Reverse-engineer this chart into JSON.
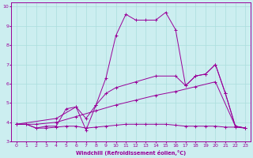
{
  "xlabel": "Windchill (Refroidissement éolien,°C)",
  "bg_color": "#cceef0",
  "grid_color": "#aadddd",
  "line_color": "#990099",
  "xlim": [
    -0.5,
    23.5
  ],
  "ylim": [
    3,
    10.2
  ],
  "yticks": [
    3,
    4,
    5,
    6,
    7,
    8,
    9,
    10
  ],
  "xticks": [
    0,
    1,
    2,
    3,
    4,
    5,
    6,
    7,
    8,
    9,
    10,
    11,
    12,
    13,
    14,
    15,
    16,
    17,
    18,
    19,
    20,
    21,
    22,
    23
  ],
  "line1": [
    [
      0,
      3.9
    ],
    [
      1,
      3.9
    ],
    [
      2,
      3.7
    ],
    [
      3,
      3.8
    ],
    [
      4,
      3.8
    ],
    [
      5,
      4.7
    ],
    [
      6,
      4.8
    ],
    [
      7,
      3.6
    ],
    [
      8,
      4.9
    ],
    [
      9,
      6.3
    ],
    [
      10,
      8.5
    ],
    [
      11,
      9.6
    ],
    [
      12,
      9.3
    ],
    [
      13,
      9.3
    ],
    [
      14,
      9.3
    ],
    [
      15,
      9.7
    ],
    [
      16,
      8.8
    ],
    [
      17,
      5.9
    ],
    [
      18,
      6.4
    ],
    [
      19,
      6.5
    ],
    [
      20,
      7.0
    ],
    [
      21,
      5.5
    ],
    [
      22,
      3.8
    ],
    [
      23,
      3.7
    ]
  ],
  "line2": [
    [
      0,
      3.9
    ],
    [
      1,
      3.9
    ],
    [
      2,
      3.7
    ],
    [
      3,
      3.7
    ],
    [
      4,
      3.75
    ],
    [
      5,
      3.8
    ],
    [
      6,
      3.8
    ],
    [
      7,
      3.7
    ],
    [
      8,
      3.75
    ],
    [
      9,
      3.8
    ],
    [
      10,
      3.85
    ],
    [
      11,
      3.9
    ],
    [
      12,
      3.9
    ],
    [
      13,
      3.9
    ],
    [
      14,
      3.9
    ],
    [
      15,
      3.9
    ],
    [
      16,
      3.85
    ],
    [
      17,
      3.8
    ],
    [
      18,
      3.8
    ],
    [
      19,
      3.8
    ],
    [
      20,
      3.8
    ],
    [
      21,
      3.75
    ],
    [
      22,
      3.75
    ],
    [
      23,
      3.7
    ]
  ],
  "line3": [
    [
      0,
      3.9
    ],
    [
      2,
      3.9
    ],
    [
      4,
      4.0
    ],
    [
      6,
      4.3
    ],
    [
      8,
      4.6
    ],
    [
      10,
      4.9
    ],
    [
      12,
      5.15
    ],
    [
      14,
      5.4
    ],
    [
      16,
      5.6
    ],
    [
      18,
      5.85
    ],
    [
      20,
      6.1
    ],
    [
      22,
      3.8
    ],
    [
      23,
      3.7
    ]
  ],
  "line4": [
    [
      0,
      3.9
    ],
    [
      4,
      4.2
    ],
    [
      6,
      4.8
    ],
    [
      7,
      4.2
    ],
    [
      8,
      4.9
    ],
    [
      9,
      5.5
    ],
    [
      10,
      5.8
    ],
    [
      12,
      6.1
    ],
    [
      14,
      6.4
    ],
    [
      16,
      6.4
    ],
    [
      17,
      5.9
    ],
    [
      18,
      6.4
    ],
    [
      19,
      6.5
    ],
    [
      20,
      7.0
    ],
    [
      21,
      5.5
    ],
    [
      22,
      3.8
    ],
    [
      23,
      3.7
    ]
  ]
}
